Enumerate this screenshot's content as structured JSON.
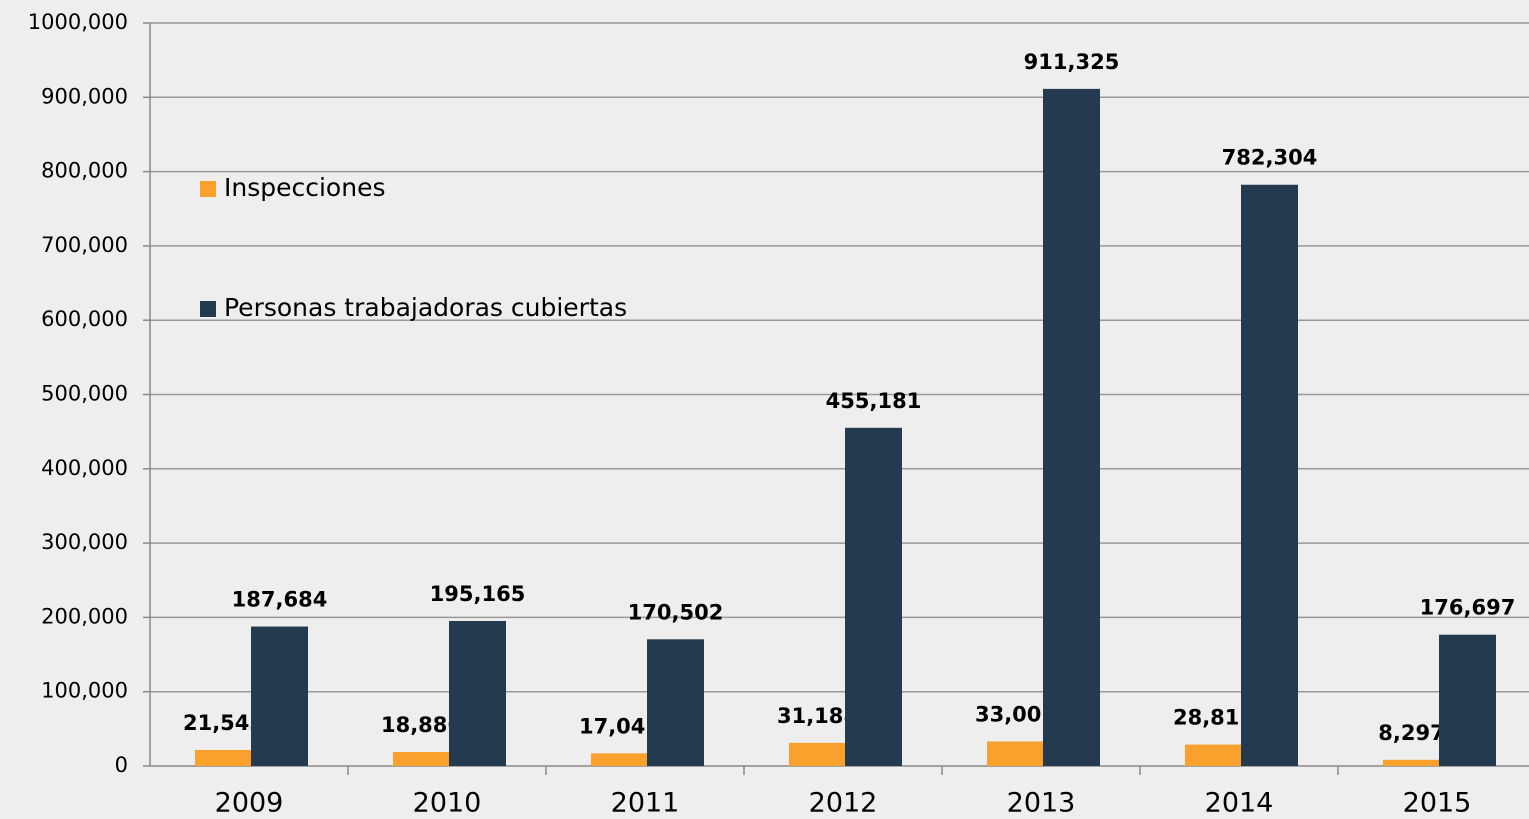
{
  "chart_data": {
    "type": "bar",
    "categories": [
      "2009",
      "2010",
      "2011",
      "2012",
      "2013",
      "2014",
      "2015"
    ],
    "series": [
      {
        "name": "Inspecciones",
        "color": "#f9a12c",
        "values": [
          21543,
          18886,
          17042,
          31188,
          33001,
          28811,
          8297
        ],
        "value_labels": [
          "21,543",
          "18,886",
          "17,042",
          "31,188",
          "33,001",
          "28,811",
          "8,297"
        ]
      },
      {
        "name": "Personas trabajadoras cubiertas",
        "color": "#243a4e",
        "values": [
          187684,
          195165,
          170502,
          455181,
          911325,
          782304,
          176697
        ],
        "value_labels": [
          "187,684",
          "195,165",
          "170,502",
          "455,181",
          "911,325",
          "782,304",
          "176,697"
        ]
      }
    ],
    "ylim": [
      0,
      1000000
    ],
    "yticks": [
      0,
      {
        "value": 100000,
        "label": "100,000"
      },
      {
        "value": 200000,
        "label": "200,000"
      },
      {
        "value": 300000,
        "label": "300,000"
      },
      {
        "value": 400000,
        "label": "400,000"
      },
      {
        "value": 500000,
        "label": "500,000"
      },
      {
        "value": 600000,
        "label": "600,000"
      },
      {
        "value": 700000,
        "label": "700,000"
      },
      {
        "value": 800000,
        "label": "800,000"
      },
      {
        "value": 900000,
        "label": "900,000"
      },
      {
        "value": 1000000,
        "label": "1000,000"
      }
    ],
    "grid": true,
    "legend_position": "upper left"
  }
}
